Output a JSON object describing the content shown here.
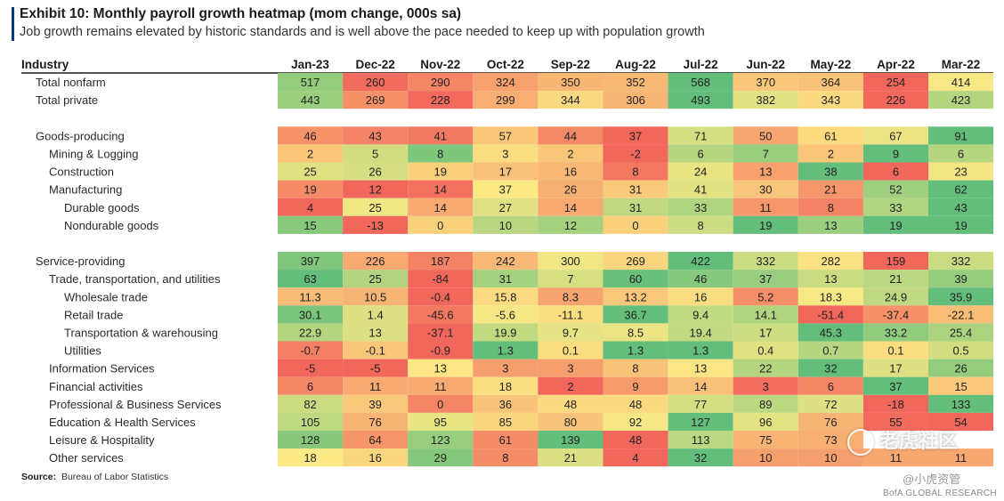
{
  "header": {
    "title": "Exhibit 10: Monthly payroll growth heatmap (mom change, 000s sa)",
    "subtitle": "Job growth remains elevated by historic standards and is well above the pace needed to keep up with population growth"
  },
  "footer": {
    "source_label": "Source:",
    "source_text": "Bureau of Labor Statistics",
    "watermark": "老虎社区",
    "watermark_handle": "@小虎资管",
    "brand": "BofA GLOBAL RESEARCH"
  },
  "colors": {
    "scale_neg": "#f2675c",
    "scale_mid": "#fbe985",
    "scale_pos": "#63be7b",
    "accent": "#0a3a78"
  },
  "chart_data": {
    "type": "heatmap",
    "title": "Exhibit 10: Monthly payroll growth heatmap (mom change, 000s sa)",
    "row_header": "Industry",
    "columns": [
      "Jan-23",
      "Dec-22",
      "Nov-22",
      "Oct-22",
      "Sep-22",
      "Aug-22",
      "Jul-22",
      "Jun-22",
      "May-22",
      "Apr-22",
      "Mar-22"
    ],
    "rows": [
      {
        "label": "Total nonfarm",
        "level": 0,
        "values": [
          "517",
          "260",
          "290",
          "324",
          "350",
          "352",
          "568",
          "370",
          "364",
          "254",
          "414"
        ]
      },
      {
        "label": "Total private",
        "level": 0,
        "values": [
          "443",
          "269",
          "228",
          "299",
          "344",
          "306",
          "493",
          "382",
          "343",
          "226",
          "423"
        ]
      },
      {
        "label": "",
        "level": 0,
        "spacer": true,
        "values": []
      },
      {
        "label": "Goods-producing",
        "level": 0,
        "values": [
          "46",
          "43",
          "41",
          "57",
          "44",
          "37",
          "71",
          "50",
          "61",
          "67",
          "91"
        ]
      },
      {
        "label": "Mining & Logging",
        "level": 1,
        "values": [
          "2",
          "5",
          "8",
          "3",
          "2",
          "-2",
          "6",
          "7",
          "2",
          "9",
          "6"
        ]
      },
      {
        "label": "Construction",
        "level": 1,
        "values": [
          "25",
          "26",
          "19",
          "17",
          "16",
          "8",
          "24",
          "13",
          "38",
          "6",
          "23"
        ]
      },
      {
        "label": "Manufacturing",
        "level": 1,
        "values": [
          "19",
          "12",
          "14",
          "37",
          "26",
          "31",
          "41",
          "30",
          "21",
          "52",
          "62"
        ]
      },
      {
        "label": "Durable goods",
        "level": 2,
        "values": [
          "4",
          "25",
          "14",
          "27",
          "14",
          "31",
          "33",
          "11",
          "8",
          "33",
          "43"
        ]
      },
      {
        "label": "Nondurable goods",
        "level": 2,
        "values": [
          "15",
          "-13",
          "0",
          "10",
          "12",
          "0",
          "8",
          "19",
          "13",
          "19",
          "19"
        ]
      },
      {
        "label": "",
        "level": 0,
        "spacer": true,
        "values": []
      },
      {
        "label": "Service-providing",
        "level": 0,
        "values": [
          "397",
          "226",
          "187",
          "242",
          "300",
          "269",
          "422",
          "332",
          "282",
          "159",
          "332"
        ]
      },
      {
        "label": "Trade, transportation, and utilities",
        "level": 1,
        "values": [
          "63",
          "25",
          "-84",
          "31",
          "7",
          "60",
          "46",
          "37",
          "13",
          "21",
          "39"
        ]
      },
      {
        "label": "Wholesale trade",
        "level": 2,
        "values": [
          "11.3",
          "10.5",
          "-0.4",
          "15.8",
          "8.3",
          "13.2",
          "16",
          "5.2",
          "18.3",
          "24.9",
          "35.9"
        ]
      },
      {
        "label": "Retail trade",
        "level": 2,
        "values": [
          "30.1",
          "1.4",
          "-45.6",
          "-5.6",
          "-11.1",
          "36.7",
          "9.4",
          "14.1",
          "-51.4",
          "-37.4",
          "-22.1"
        ]
      },
      {
        "label": "Transportation & warehousing",
        "level": 2,
        "values": [
          "22.9",
          "13",
          "-37.1",
          "19.9",
          "9.7",
          "8.5",
          "19.4",
          "17",
          "45.3",
          "33.2",
          "25.4"
        ]
      },
      {
        "label": "Utilities",
        "level": 2,
        "values": [
          "-0.7",
          "-0.1",
          "-0.9",
          "1.3",
          "0.1",
          "1.3",
          "1.3",
          "0.4",
          "0.7",
          "0.1",
          "0.5"
        ]
      },
      {
        "label": "Information Services",
        "level": 1,
        "values": [
          "-5",
          "-5",
          "13",
          "3",
          "3",
          "8",
          "13",
          "22",
          "32",
          "17",
          "26"
        ]
      },
      {
        "label": "Financial activities",
        "level": 1,
        "values": [
          "6",
          "11",
          "11",
          "18",
          "2",
          "9",
          "14",
          "3",
          "6",
          "37",
          "15"
        ]
      },
      {
        "label": "Professional & Business Services",
        "level": 1,
        "values": [
          "82",
          "39",
          "0",
          "36",
          "48",
          "48",
          "77",
          "89",
          "72",
          "-18",
          "133"
        ]
      },
      {
        "label": "Education & Health Services",
        "level": 1,
        "values": [
          "105",
          "76",
          "95",
          "85",
          "80",
          "92",
          "127",
          "96",
          "76",
          "55",
          "54"
        ]
      },
      {
        "label": "Leisure & Hospitality",
        "level": 1,
        "values": [
          "128",
          "64",
          "123",
          "61",
          "139",
          "48",
          "113",
          "75",
          "73",
          "",
          ""
        ]
      },
      {
        "label": "Other services",
        "level": 1,
        "values": [
          "18",
          "16",
          "29",
          "8",
          "21",
          "4",
          "32",
          "10",
          "10",
          "11",
          "11"
        ]
      }
    ]
  }
}
